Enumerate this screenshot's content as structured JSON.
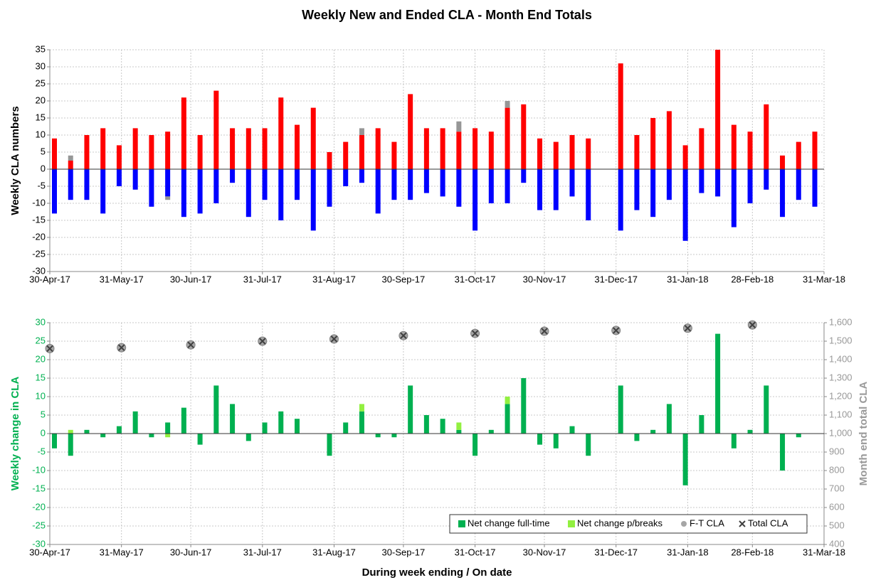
{
  "chart_data": [
    {
      "type": "bar",
      "title": "Weekly New and Ended CLA  -  Month End Totals",
      "ylabel": "Weekly CLA numbers",
      "stacked": true,
      "grid": true,
      "x": [
        "2017-05-02",
        "2017-05-09",
        "2017-05-16",
        "2017-05-23",
        "2017-05-30",
        "2017-06-06",
        "2017-06-13",
        "2017-06-20",
        "2017-06-27",
        "2017-07-04",
        "2017-07-11",
        "2017-07-18",
        "2017-07-25",
        "2017-08-01",
        "2017-08-08",
        "2017-08-15",
        "2017-08-22",
        "2017-08-29",
        "2017-09-05",
        "2017-09-12",
        "2017-09-19",
        "2017-09-26",
        "2017-10-03",
        "2017-10-10",
        "2017-10-17",
        "2017-10-24",
        "2017-10-31",
        "2017-11-07",
        "2017-11-14",
        "2017-11-21",
        "2017-11-28",
        "2017-12-05",
        "2017-12-12",
        "2017-12-19",
        "2017-12-26",
        "2018-01-02",
        "2018-01-09",
        "2018-01-16",
        "2018-01-23",
        "2018-01-30",
        "2018-02-06",
        "2018-02-13",
        "2018-02-20",
        "2018-02-27",
        "2018-03-06",
        "2018-03-13",
        "2018-03-20",
        "2018-03-27"
      ],
      "series": [
        {
          "color": "#ff0000",
          "values": [
            9,
            2.5,
            10,
            12,
            7,
            12,
            10,
            11,
            21,
            10,
            23,
            12,
            12,
            12,
            21,
            13,
            18,
            5,
            8,
            10,
            12,
            8,
            22,
            12,
            12,
            11,
            12,
            11,
            18,
            19,
            9,
            8,
            10,
            9,
            null,
            31,
            10,
            15,
            17,
            7,
            12,
            35,
            13,
            11,
            19,
            4,
            8,
            11
          ]
        },
        {
          "color": "#0000ff",
          "values": [
            -13,
            -9,
            -9,
            -13,
            -5,
            -6,
            -11,
            -8,
            -14,
            -13,
            -10,
            -4,
            -14,
            -9,
            -15,
            -9,
            -18,
            -11,
            -5,
            -4,
            -13,
            -9,
            -9,
            -7,
            -8,
            -11,
            -18,
            -10,
            -10,
            -4,
            -12,
            -12,
            -8,
            -15,
            null,
            -18,
            -12,
            -14,
            -9,
            -21,
            -7,
            -8,
            -17,
            -10,
            -6,
            -14,
            -9,
            -11
          ]
        },
        {
          "color": "#969696",
          "values": [
            null,
            1.5,
            null,
            null,
            null,
            null,
            null,
            -1,
            null,
            null,
            null,
            null,
            null,
            null,
            null,
            null,
            null,
            null,
            null,
            2,
            null,
            null,
            null,
            null,
            null,
            3,
            null,
            null,
            2,
            null,
            null,
            null,
            null,
            null,
            null,
            null,
            null,
            null,
            null,
            null,
            null,
            null,
            null,
            null,
            null,
            null,
            null,
            null
          ]
        }
      ],
      "xlim": [
        "2017-04-30",
        "2018-03-31"
      ],
      "xticks": [
        {
          "value": "2017-04-30",
          "label": "30-Apr-17"
        },
        {
          "value": "2017-05-31",
          "label": "31-May-17"
        },
        {
          "value": "2017-06-30",
          "label": "30-Jun-17"
        },
        {
          "value": "2017-07-31",
          "label": "31-Jul-17"
        },
        {
          "value": "2017-08-31",
          "label": "31-Aug-17"
        },
        {
          "value": "2017-09-30",
          "label": "30-Sep-17"
        },
        {
          "value": "2017-10-31",
          "label": "31-Oct-17"
        },
        {
          "value": "2017-11-30",
          "label": "30-Nov-17"
        },
        {
          "value": "2017-12-31",
          "label": "31-Dec-17"
        },
        {
          "value": "2018-01-31",
          "label": "31-Jan-18"
        },
        {
          "value": "2018-02-28",
          "label": "28-Feb-18"
        },
        {
          "value": "2018-03-31",
          "label": "31-Mar-18"
        }
      ],
      "ylim": [
        -30,
        35
      ],
      "yticks": [
        -30,
        -25,
        -20,
        -15,
        -10,
        -5,
        0,
        5,
        10,
        15,
        20,
        25,
        30,
        35
      ]
    },
    {
      "type": "bar",
      "ylabel": "Weekly change in CLA",
      "y2label": "Month end total CLA",
      "xlabel": "During week ending  /  On date",
      "stacked": true,
      "grid": true,
      "legend": "bottom right",
      "x": [
        "2017-05-02",
        "2017-05-09",
        "2017-05-16",
        "2017-05-23",
        "2017-05-30",
        "2017-06-06",
        "2017-06-13",
        "2017-06-20",
        "2017-06-27",
        "2017-07-04",
        "2017-07-11",
        "2017-07-18",
        "2017-07-25",
        "2017-08-01",
        "2017-08-08",
        "2017-08-15",
        "2017-08-22",
        "2017-08-29",
        "2017-09-05",
        "2017-09-12",
        "2017-09-19",
        "2017-09-26",
        "2017-10-03",
        "2017-10-10",
        "2017-10-17",
        "2017-10-24",
        "2017-10-31",
        "2017-11-07",
        "2017-11-14",
        "2017-11-21",
        "2017-11-28",
        "2017-12-05",
        "2017-12-12",
        "2017-12-19",
        "2017-12-26",
        "2018-01-02",
        "2018-01-09",
        "2018-01-16",
        "2018-01-23",
        "2018-01-30",
        "2018-02-06",
        "2018-02-13",
        "2018-02-20",
        "2018-02-27",
        "2018-03-06",
        "2018-03-13",
        "2018-03-20",
        "2018-03-27"
      ],
      "series": [
        {
          "name": "Net change full-time",
          "color": "#00b050",
          "values": [
            -4,
            -6,
            1,
            -1,
            2,
            6,
            -1,
            3,
            7,
            -3,
            13,
            8,
            -2,
            3,
            6,
            4,
            0,
            -6,
            3,
            6,
            -1,
            -1,
            13,
            5,
            4,
            1,
            -6,
            1,
            8,
            15,
            -3,
            -4,
            2,
            -6,
            null,
            13,
            -2,
            1,
            8,
            -14,
            5,
            27,
            -4,
            1,
            13,
            -10,
            -1,
            0
          ]
        },
        {
          "name": "Net change p/breaks",
          "color": "#92f040",
          "values": [
            null,
            1,
            null,
            null,
            null,
            null,
            null,
            -1,
            null,
            null,
            null,
            null,
            null,
            null,
            null,
            null,
            null,
            null,
            null,
            2,
            null,
            null,
            null,
            null,
            null,
            2,
            null,
            null,
            2,
            null,
            null,
            null,
            null,
            null,
            null,
            null,
            null,
            null,
            null,
            null,
            null,
            null,
            null,
            null,
            null,
            null,
            null,
            null
          ]
        },
        {
          "name": "F-T CLA",
          "type": "scatter",
          "marker": "circle",
          "axis": "y2",
          "color": "#a6a6a6",
          "x": [
            "2017-04-30",
            "2017-05-31",
            "2017-06-30",
            "2017-07-31",
            "2017-08-31",
            "2017-09-30",
            "2017-10-31",
            "2017-11-30",
            "2017-12-31",
            "2018-01-31",
            "2018-02-28"
          ],
          "values": [
            1460,
            1465,
            1480,
            1500,
            1512,
            1530,
            1542,
            1554,
            1558,
            1570,
            1588
          ]
        },
        {
          "name": "Total CLA",
          "type": "scatter",
          "marker": "x",
          "axis": "y2",
          "color": "#404040",
          "x": [
            "2017-04-30",
            "2017-05-31",
            "2017-06-30",
            "2017-07-31",
            "2017-08-31",
            "2017-09-30",
            "2017-10-31",
            "2017-11-30",
            "2017-12-31",
            "2018-01-31",
            "2018-02-28"
          ],
          "values": [
            1460,
            1465,
            1480,
            1500,
            1512,
            1530,
            1542,
            1554,
            1558,
            1570,
            1588
          ]
        }
      ],
      "xlim": [
        "2017-04-30",
        "2018-03-31"
      ],
      "xticks": [
        {
          "value": "2017-04-30",
          "label": "30-Apr-17"
        },
        {
          "value": "2017-05-31",
          "label": "31-May-17"
        },
        {
          "value": "2017-06-30",
          "label": "30-Jun-17"
        },
        {
          "value": "2017-07-31",
          "label": "31-Jul-17"
        },
        {
          "value": "2017-08-31",
          "label": "31-Aug-17"
        },
        {
          "value": "2017-09-30",
          "label": "30-Sep-17"
        },
        {
          "value": "2017-10-31",
          "label": "31-Oct-17"
        },
        {
          "value": "2017-11-30",
          "label": "30-Nov-17"
        },
        {
          "value": "2017-12-31",
          "label": "31-Dec-17"
        },
        {
          "value": "2018-01-31",
          "label": "31-Jan-18"
        },
        {
          "value": "2018-02-28",
          "label": "28-Feb-18"
        },
        {
          "value": "2018-03-31",
          "label": "31-Mar-18"
        }
      ],
      "ylim": [
        -30,
        30
      ],
      "yticks": [
        -30,
        -25,
        -20,
        -15,
        -10,
        -5,
        0,
        5,
        10,
        15,
        20,
        25,
        30
      ],
      "y2lim": [
        400,
        1600
      ],
      "y2ticks": [
        400,
        500,
        600,
        700,
        800,
        900,
        {
          "value": 1000,
          "label": "1,000"
        },
        {
          "value": 1100,
          "label": "1,100"
        },
        {
          "value": 1200,
          "label": "1,200"
        },
        {
          "value": 1300,
          "label": "1,300"
        },
        {
          "value": 1400,
          "label": "1,400"
        },
        {
          "value": 1500,
          "label": "1,500"
        },
        {
          "value": 1600,
          "label": "1,600"
        }
      ]
    }
  ]
}
